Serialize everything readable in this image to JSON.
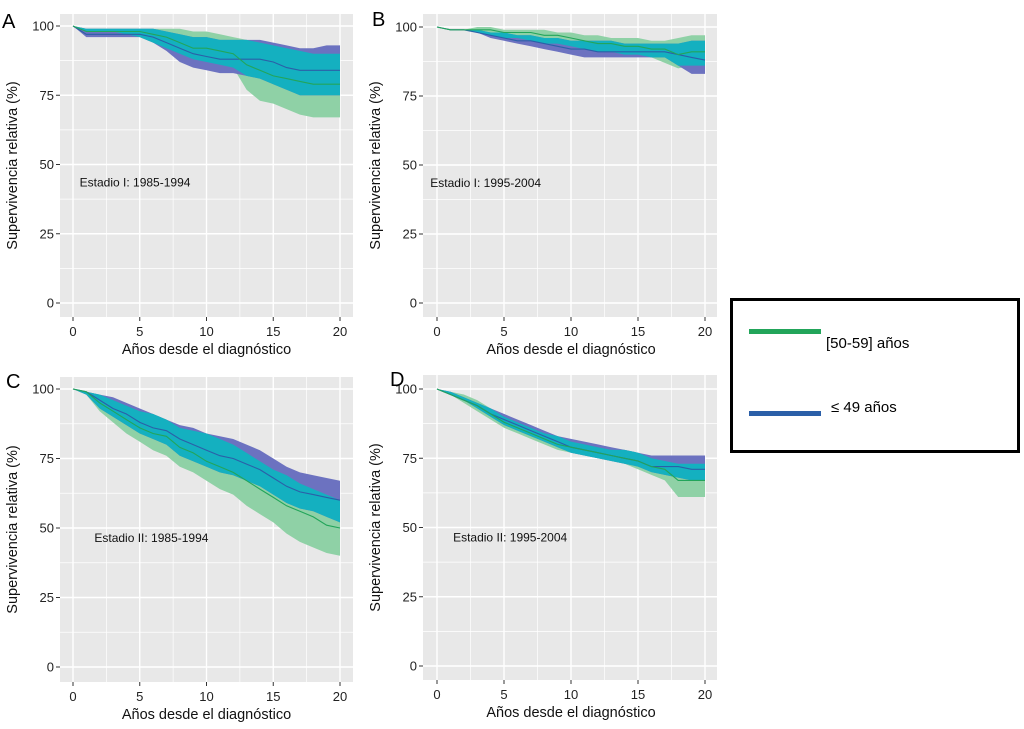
{
  "figure": {
    "y_axis_label": "Supervivencia relativa (%)",
    "x_axis_label": "Años desde el diagnóstico",
    "colors": {
      "panel_bg": "#e8e8e8",
      "grid": "#ffffff",
      "green_line": "#22a55a",
      "blue_line": "#2b5fa8",
      "green_ribbon": "#8fd1a6",
      "blue_ribbon": "#6c72c0",
      "overlap_ribbon": "#14b0c0"
    }
  },
  "legend": {
    "items": [
      {
        "label": "[50-59] años",
        "color": "#22a55a"
      },
      {
        "label": "≤ 49  años",
        "color": "#2b5fa8"
      }
    ]
  },
  "chart_data": [
    {
      "panel": "A",
      "type": "line",
      "annotation": "Estadio I: 1985-1994",
      "xlabel": "Años desde el diagnóstico",
      "ylabel": "Supervivencia relativa (%)",
      "xlim": [
        0,
        20
      ],
      "ylim": [
        0,
        100
      ],
      "xticks": [
        0,
        5,
        10,
        15,
        20
      ],
      "yticks": [
        0,
        25,
        50,
        75,
        100
      ],
      "grid": true,
      "x": [
        0,
        1,
        2,
        3,
        4,
        5,
        6,
        7,
        8,
        9,
        10,
        11,
        12,
        13,
        14,
        15,
        16,
        17,
        18,
        19,
        20
      ],
      "series": [
        {
          "name": "[50-59] años",
          "values": [
            100,
            98,
            98,
            98,
            98,
            98,
            97,
            96,
            94,
            92,
            92,
            91,
            90,
            86,
            84,
            82,
            81,
            80,
            79,
            79,
            79
          ],
          "lower": [
            100,
            98,
            98,
            98,
            97,
            96,
            94,
            92,
            90,
            88,
            87,
            86,
            85,
            77,
            73,
            72,
            70,
            68,
            67,
            67,
            67
          ],
          "upper": [
            100,
            99,
            99,
            99,
            99,
            99,
            99,
            99,
            99,
            98,
            98,
            97,
            96,
            95,
            94,
            93,
            92,
            91,
            90,
            90,
            90
          ]
        },
        {
          "name": "≤ 49 años",
          "values": [
            100,
            97,
            97,
            97,
            97,
            97,
            96,
            94,
            92,
            90,
            89,
            88,
            88,
            88,
            88,
            87,
            85,
            84,
            84,
            84,
            84
          ],
          "lower": [
            100,
            96,
            96,
            96,
            96,
            96,
            94,
            91,
            87,
            85,
            84,
            83,
            83,
            82,
            81,
            79,
            77,
            75,
            75,
            75,
            75
          ],
          "upper": [
            100,
            99,
            99,
            99,
            99,
            99,
            99,
            98,
            97,
            96,
            96,
            95,
            95,
            95,
            95,
            94,
            93,
            92,
            92,
            93,
            93
          ]
        }
      ]
    },
    {
      "panel": "B",
      "type": "line",
      "annotation": "Estadio I: 1995-2004",
      "xlabel": "Años desde el diagnóstico",
      "ylabel": "Supervivencia relativa (%)",
      "xlim": [
        0,
        20
      ],
      "ylim": [
        0,
        100
      ],
      "xticks": [
        0,
        5,
        10,
        15,
        20
      ],
      "yticks": [
        0,
        25,
        50,
        75,
        100
      ],
      "grid": true,
      "x": [
        0,
        1,
        2,
        3,
        4,
        5,
        6,
        7,
        8,
        9,
        10,
        11,
        12,
        13,
        14,
        15,
        16,
        17,
        18,
        19,
        20
      ],
      "series": [
        {
          "name": "[50-59] años",
          "values": [
            100,
            99,
            99,
            99,
            99,
            98,
            98,
            98,
            97,
            97,
            96,
            95,
            94,
            94,
            93,
            93,
            92,
            92,
            90,
            91,
            91
          ],
          "lower": [
            100,
            99,
            99,
            98,
            97,
            96,
            96,
            95,
            94,
            94,
            93,
            92,
            91,
            91,
            90,
            90,
            89,
            87,
            85,
            86,
            86
          ],
          "upper": [
            100,
            99,
            99,
            100,
            100,
            99,
            99,
            99,
            99,
            98,
            98,
            97,
            97,
            96,
            96,
            96,
            95,
            95,
            96,
            97,
            97
          ]
        },
        {
          "name": "≤ 49 años",
          "values": [
            100,
            99,
            99,
            98,
            97,
            96,
            95,
            95,
            94,
            93,
            92,
            92,
            91,
            91,
            91,
            91,
            91,
            91,
            90,
            89,
            88
          ],
          "lower": [
            100,
            99,
            99,
            98,
            96,
            95,
            94,
            93,
            92,
            91,
            90,
            89,
            89,
            89,
            89,
            89,
            89,
            89,
            86,
            83,
            83
          ],
          "upper": [
            100,
            99,
            99,
            99,
            98,
            98,
            97,
            97,
            96,
            96,
            95,
            95,
            95,
            95,
            94,
            94,
            94,
            94,
            94,
            95,
            95
          ]
        }
      ]
    },
    {
      "panel": "C",
      "type": "line",
      "annotation": "Estadio II: 1985-1994",
      "xlabel": "Años desde el diagnóstico",
      "ylabel": "Supervivencia relativa (%)",
      "xlim": [
        0,
        20
      ],
      "ylim": [
        0,
        100
      ],
      "xticks": [
        0,
        5,
        10,
        15,
        20
      ],
      "yticks": [
        0,
        25,
        50,
        75,
        100
      ],
      "grid": true,
      "x": [
        0,
        1,
        2,
        3,
        4,
        5,
        6,
        7,
        8,
        9,
        10,
        11,
        12,
        13,
        14,
        15,
        16,
        17,
        18,
        19,
        20
      ],
      "series": [
        {
          "name": "[50-59] años",
          "values": [
            100,
            99,
            95,
            92,
            89,
            86,
            84,
            83,
            79,
            77,
            74,
            72,
            70,
            67,
            64,
            61,
            58,
            56,
            54,
            51,
            50
          ],
          "lower": [
            100,
            98,
            92,
            88,
            84,
            81,
            78,
            76,
            72,
            70,
            67,
            64,
            62,
            58,
            55,
            52,
            48,
            45,
            43,
            41,
            40
          ],
          "upper": [
            100,
            99,
            98,
            96,
            94,
            92,
            91,
            89,
            86,
            85,
            84,
            82,
            80,
            77,
            74,
            71,
            69,
            66,
            64,
            62,
            60
          ]
        },
        {
          "name": "≤ 49 años",
          "values": [
            100,
            99,
            96,
            93,
            91,
            88,
            86,
            85,
            82,
            80,
            78,
            76,
            75,
            73,
            71,
            68,
            65,
            63,
            62,
            61,
            60
          ],
          "lower": [
            100,
            98,
            93,
            90,
            87,
            84,
            82,
            80,
            76,
            74,
            72,
            70,
            69,
            67,
            65,
            62,
            59,
            57,
            56,
            54,
            52
          ],
          "upper": [
            100,
            99,
            98,
            97,
            95,
            93,
            91,
            89,
            87,
            86,
            84,
            83,
            82,
            80,
            78,
            75,
            72,
            70,
            69,
            68,
            67
          ]
        }
      ]
    },
    {
      "panel": "D",
      "type": "line",
      "annotation": "Estadio II: 1995-2004",
      "xlabel": "Años desde el diagnóstico",
      "ylabel": "Supervivencia relativa (%)",
      "xlim": [
        0,
        20
      ],
      "ylim": [
        0,
        100
      ],
      "xticks": [
        0,
        5,
        10,
        15,
        20
      ],
      "yticks": [
        0,
        25,
        50,
        75,
        100
      ],
      "grid": true,
      "x": [
        0,
        1,
        2,
        3,
        4,
        5,
        6,
        7,
        8,
        9,
        10,
        11,
        12,
        13,
        14,
        15,
        16,
        17,
        18,
        19,
        20
      ],
      "series": [
        {
          "name": "[50-59] años",
          "values": [
            100,
            98,
            96,
            94,
            91,
            88,
            86,
            84,
            82,
            80,
            79,
            78,
            77,
            76,
            75,
            74,
            72,
            71,
            67,
            67,
            67
          ],
          "lower": [
            100,
            98,
            95,
            92,
            89,
            86,
            84,
            82,
            80,
            78,
            77,
            76,
            75,
            74,
            73,
            71,
            69,
            67,
            61,
            61,
            61
          ],
          "upper": [
            100,
            99,
            98,
            96,
            93,
            90,
            88,
            86,
            84,
            83,
            81,
            80,
            79,
            78,
            78,
            77,
            75,
            74,
            73,
            73,
            73
          ]
        },
        {
          "name": "≤ 49 años",
          "values": [
            100,
            98,
            96,
            94,
            91,
            89,
            87,
            85,
            83,
            81,
            79,
            78,
            77,
            76,
            75,
            74,
            72,
            72,
            72,
            71,
            71
          ],
          "lower": [
            100,
            98,
            96,
            93,
            90,
            87,
            85,
            83,
            81,
            79,
            77,
            76,
            75,
            74,
            73,
            72,
            70,
            69,
            68,
            67,
            67
          ],
          "upper": [
            100,
            99,
            97,
            95,
            93,
            91,
            89,
            87,
            85,
            83,
            82,
            81,
            80,
            79,
            78,
            77,
            76,
            76,
            76,
            76,
            76
          ]
        }
      ]
    }
  ]
}
